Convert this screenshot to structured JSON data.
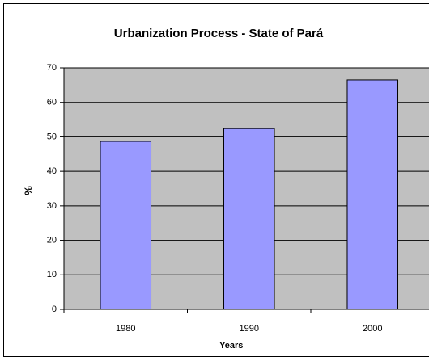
{
  "chart_data": {
    "type": "bar",
    "title": "Urbanization Process - State of Pará",
    "x_label": "Years",
    "y_label": "%",
    "categories": [
      "1980",
      "1990",
      "2000"
    ],
    "values": [
      48.7,
      52.4,
      66.5
    ],
    "color": "#9999ff",
    "ylim": [
      0,
      70
    ],
    "yticks": [
      0,
      10,
      20,
      30,
      40,
      50,
      60,
      70
    ],
    "grid": true
  }
}
